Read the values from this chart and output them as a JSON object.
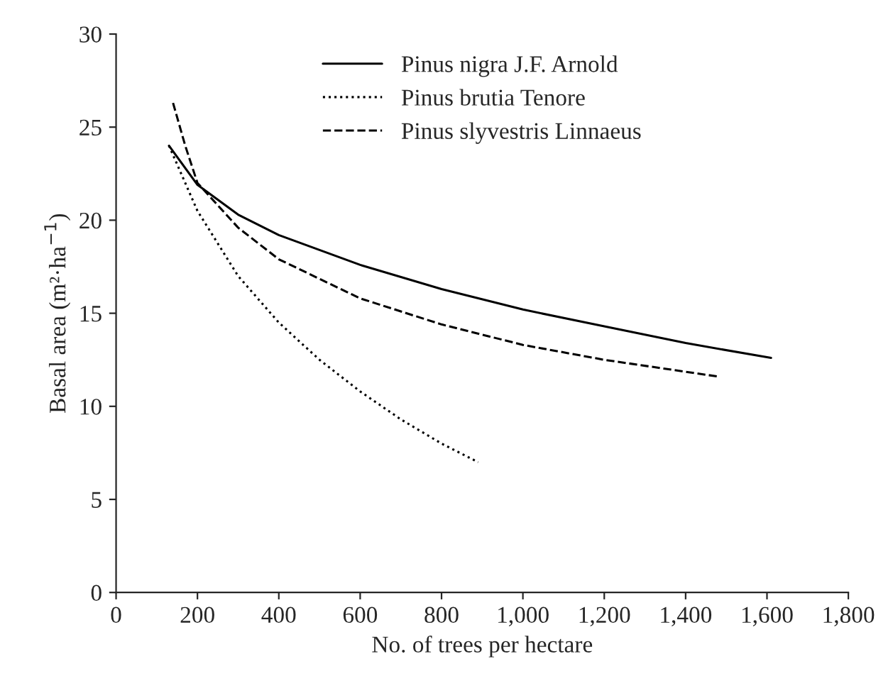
{
  "chart_data": {
    "type": "line",
    "xlabel": "No. of trees per hectare",
    "ylabel": "Basal area (m²·ha$^{−1}$)",
    "series": [
      {
        "name": "Pinus nigra J.F. Arnold",
        "color": "#000000",
        "line_style": "solid",
        "x": [
          130,
          200,
          300,
          400,
          600,
          800,
          1000,
          1200,
          1400,
          1610
        ],
        "values": [
          24,
          21.9,
          20.3,
          19.2,
          17.6,
          16.3,
          15.2,
          14.3,
          13.4,
          12.6
        ]
      },
      {
        "name": "Pinus brutia Tenore",
        "color": "#000000",
        "line_style": "dotted",
        "x": [
          130,
          200,
          300,
          400,
          500,
          600,
          700,
          800,
          890
        ],
        "values": [
          24,
          20.5,
          17,
          14.5,
          12.5,
          10.8,
          9.3,
          8.0,
          7.0
        ]
      },
      {
        "name": "Pinus slyvestris Linnaeus",
        "color": "#000000",
        "line_style": "dashed",
        "x": [
          140,
          170,
          200,
          300,
          400,
          600,
          800,
          1000,
          1200,
          1480
        ],
        "values": [
          26.3,
          24,
          22,
          19.6,
          17.9,
          15.8,
          14.4,
          13.3,
          12.5,
          11.6
        ]
      }
    ],
    "xlim": [
      0,
      1800
    ],
    "xticks": [
      0,
      200,
      400,
      600,
      800,
      {
        "value": 1000,
        "label": "1,000"
      },
      {
        "value": 1200,
        "label": "1,200"
      },
      {
        "value": 1400,
        "label": "1,400"
      },
      {
        "value": 1600,
        "label": "1,600"
      },
      {
        "value": 1800,
        "label": "1,800"
      }
    ],
    "ylim": [
      0,
      30
    ],
    "yticks": [
      0,
      5,
      10,
      15,
      20,
      25,
      30
    ],
    "grid": false,
    "legend": "top"
  }
}
